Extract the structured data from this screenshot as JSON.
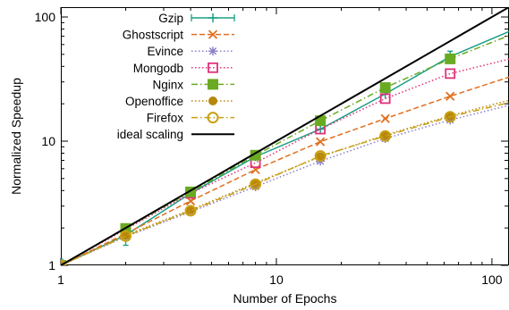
{
  "chart_data": {
    "type": "line",
    "xlabel": "Number of Epochs",
    "ylabel": "Normalized Speedup",
    "xscale": "log",
    "yscale": "log",
    "xlim": [
      1,
      120
    ],
    "ylim": [
      1,
      120
    ],
    "x_ticks": [
      {
        "value": 1,
        "label": "1"
      },
      {
        "value": 10,
        "label": "10"
      },
      {
        "value": 100,
        "label": "100"
      }
    ],
    "y_ticks": [
      {
        "value": 1,
        "label": "1"
      },
      {
        "value": 10,
        "label": "10"
      },
      {
        "value": 100,
        "label": "100"
      }
    ],
    "grid": false,
    "legend_position": "top-left",
    "series": [
      {
        "name": "Gzip",
        "color": "#1a9e86",
        "marker": "plus",
        "dash": "solid",
        "x": [
          1,
          2,
          4,
          8,
          16,
          32,
          64,
          128
        ],
        "y": [
          1.0,
          1.75,
          3.8,
          7.5,
          12.5,
          24.0,
          48.0,
          80.0
        ],
        "error_bars": [
          {
            "x": 1,
            "low": 0.94,
            "high": 1.12
          },
          {
            "x": 2,
            "low": 1.45,
            "high": 2.05
          },
          {
            "x": 64,
            "low": 44.0,
            "high": 53.0
          }
        ]
      },
      {
        "name": "Ghostscript",
        "color": "#e07020",
        "marker": "x",
        "dash": "dashed",
        "x": [
          1,
          2,
          4,
          8,
          16,
          32,
          64,
          128
        ],
        "y": [
          1.0,
          1.8,
          3.3,
          5.9,
          9.9,
          15.2,
          23.0,
          34.0
        ]
      },
      {
        "name": "Evince",
        "color": "#8a7fc8",
        "marker": "star",
        "dash": "dotted",
        "x": [
          1,
          2,
          4,
          8,
          16,
          32,
          64,
          128
        ],
        "y": [
          1.0,
          1.7,
          2.7,
          4.3,
          6.9,
          10.5,
          14.8,
          20.0
        ]
      },
      {
        "name": "Mongodb",
        "color": "#e0307a",
        "marker": "open-square",
        "dash": "dotted",
        "x": [
          1,
          2,
          4,
          8,
          16,
          32,
          64,
          128
        ],
        "y": [
          1.0,
          1.95,
          3.8,
          6.7,
          12.5,
          22.0,
          35.0,
          47.0
        ]
      },
      {
        "name": "Nginx",
        "color": "#6aaa22",
        "marker": "filled-square",
        "dash": "dashdot",
        "x": [
          1,
          2,
          4,
          8,
          16,
          32,
          64,
          128
        ],
        "y": [
          1.0,
          1.98,
          3.9,
          7.7,
          14.6,
          27.0,
          46.0,
          74.0
        ]
      },
      {
        "name": "Openoffice",
        "color": "#b8860b",
        "marker": "filled-circle",
        "dash": "dotted",
        "x": [
          1,
          2,
          4,
          8,
          16,
          32,
          64,
          128
        ],
        "y": [
          1.0,
          1.75,
          2.8,
          4.6,
          7.5,
          11.2,
          16.0,
          22.0
        ]
      },
      {
        "name": "Firefox",
        "color": "#c8a010",
        "marker": "open-circle",
        "dash": "dashdot",
        "x": [
          1,
          2,
          4,
          8,
          16,
          32,
          64,
          128
        ],
        "y": [
          1.0,
          1.72,
          2.75,
          4.5,
          7.6,
          11.0,
          15.7,
          21.0
        ]
      },
      {
        "name": "ideal scaling",
        "color": "#000000",
        "marker": "none",
        "dash": "solid",
        "x": [
          1,
          128
        ],
        "y": [
          1,
          128
        ]
      }
    ]
  }
}
